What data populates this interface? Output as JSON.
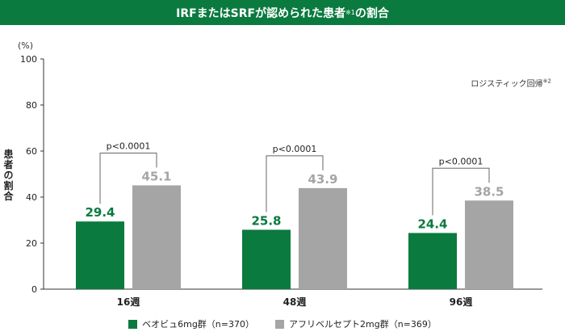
{
  "title": {
    "text": "IRFまたはSRFが認められた患者",
    "sup": "※1",
    "suffix": "の割合"
  },
  "unit_label": "(%)",
  "note": {
    "text": "ロジスティック回帰",
    "sup": "※2"
  },
  "colors": {
    "title_bg": "#0a7a3f",
    "series1": "#0a7a3f",
    "series2": "#a5a5a5",
    "axis": "#333333"
  },
  "legend": [
    {
      "label": "ベオビュ6mg群（n=370）",
      "color": "#0a7a3f"
    },
    {
      "label": "アフリベルセプト2mg群（n=369）",
      "color": "#a5a5a5"
    }
  ],
  "chart_data": {
    "type": "bar",
    "title": "IRFまたはSRFが認められた患者※1の割合",
    "ylabel": "患者の割合",
    "yunit": "(%)",
    "categories": [
      "16週",
      "48週",
      "96週"
    ],
    "series": [
      {
        "name": "ベオビュ6mg群（n=370）",
        "values": [
          29.4,
          25.8,
          24.4
        ],
        "labels": [
          "29.4",
          "25.8",
          "24.4"
        ]
      },
      {
        "name": "アフリベルセプト2mg群（n=369）",
        "values": [
          45.1,
          43.9,
          38.5
        ],
        "labels": [
          "45.1",
          "43.9",
          "38.5"
        ]
      }
    ],
    "ylim": [
      0,
      100
    ],
    "yticks": [
      0,
      20,
      40,
      60,
      80,
      100
    ],
    "ytick_labels": [
      "0",
      "20",
      "40",
      "60",
      "80",
      "100"
    ],
    "annotations": [
      "p<0.0001",
      "p<0.0001",
      "p<0.0001"
    ],
    "legend_position": "bottom",
    "grid": false
  }
}
